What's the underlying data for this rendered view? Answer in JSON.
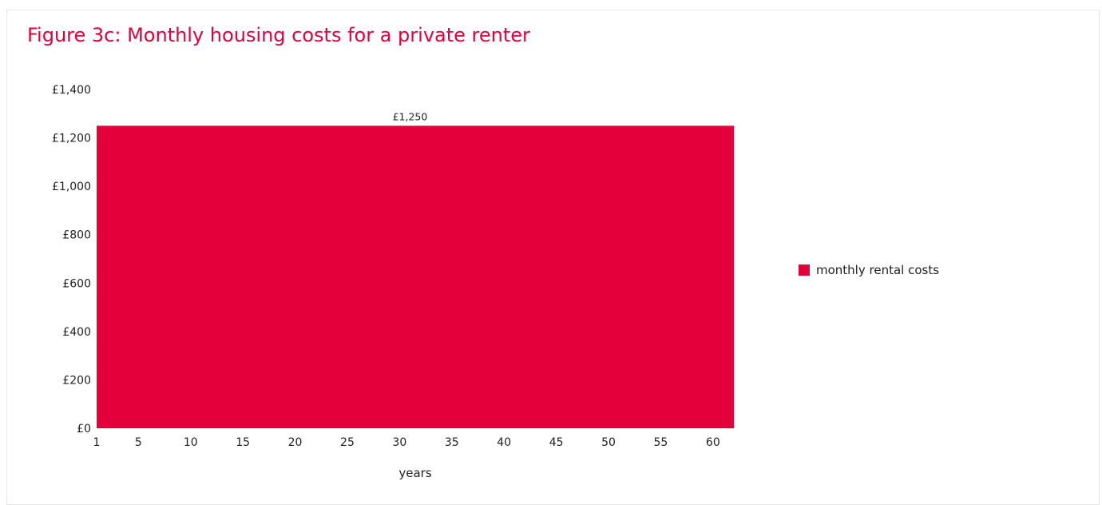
{
  "page": {
    "title": "Figure 3c: Monthly housing costs for a private renter"
  },
  "colors": {
    "title": "#e4003b",
    "series": "#e4003b",
    "text": "#222222"
  },
  "chart_data": {
    "type": "area",
    "title": "Figure 3c: Monthly housing costs for a private renter",
    "xlabel": "years",
    "ylabel": "",
    "x": [
      1,
      5,
      10,
      15,
      20,
      25,
      30,
      35,
      40,
      45,
      50,
      55,
      60
    ],
    "x_range": [
      1,
      62
    ],
    "xtick_labels": [
      "1",
      "5",
      "10",
      "15",
      "20",
      "25",
      "30",
      "35",
      "40",
      "45",
      "50",
      "55",
      "60"
    ],
    "ylim": [
      0,
      1400
    ],
    "yticks": [
      0,
      200,
      400,
      600,
      800,
      1000,
      1200,
      1400
    ],
    "ytick_labels": [
      "£0",
      "£200",
      "£400",
      "£600",
      "£800",
      "£1,000",
      "£1,200",
      "£1,400"
    ],
    "series": [
      {
        "name": "monthly rental costs",
        "values": [
          1250,
          1250,
          1250,
          1250,
          1250,
          1250,
          1250,
          1250,
          1250,
          1250,
          1250,
          1250,
          1250
        ],
        "color": "#e4003b"
      }
    ],
    "annotations": [
      {
        "x": 31,
        "y": 1250,
        "text": "£1,250"
      }
    ],
    "grid": false,
    "legend_position": "right"
  }
}
